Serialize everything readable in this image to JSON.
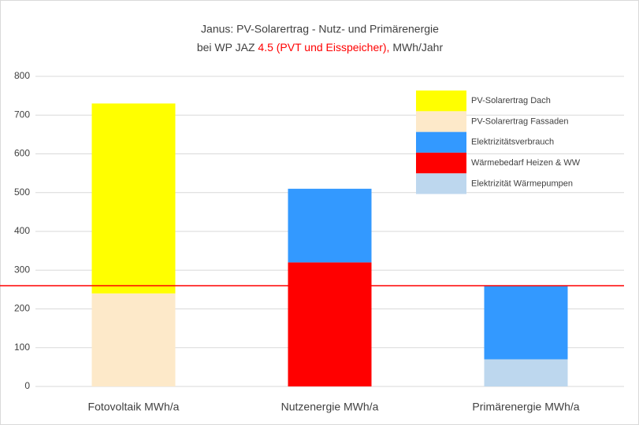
{
  "chart_data": {
    "type": "stacked_bar",
    "title": "Janus: PV-Solarertrag - Nutz- und Primärenergie",
    "subtitle_parts": [
      {
        "text": "bei WP JAZ ",
        "color": "#404040"
      },
      {
        "text": "4.5 (PVT und Eisspeicher),",
        "color": "#ff0000"
      },
      {
        "text": " MWh/Jahr",
        "color": "#404040"
      }
    ],
    "categories": [
      "Fotovoltaik MWh/a",
      "Nutzenergie MWh/a",
      "Primärenergie MWh/a"
    ],
    "series": [
      {
        "name": "Elektrizität Wärmepumpen",
        "color": "#bdd7ee",
        "values": [
          null,
          null,
          70
        ]
      },
      {
        "name": "Wärmebedarf Heizen & WW",
        "color": "#ff0000",
        "values": [
          null,
          320,
          null
        ]
      },
      {
        "name": "Elektrizitätsverbrauch",
        "color": "#3399ff",
        "values": [
          null,
          190,
          190
        ]
      },
      {
        "name": "PV-Solarertrag Fassaden",
        "color": "#fde9c9",
        "values": [
          240,
          null,
          null
        ]
      },
      {
        "name": "PV-Solarertrag Dach",
        "color": "#ffff00",
        "values": [
          490,
          null,
          null
        ]
      }
    ],
    "reference_line": {
      "value": 260,
      "color": "#ff0000"
    },
    "ylim": [
      0,
      800
    ],
    "yticks": [
      0,
      100,
      200,
      300,
      400,
      500,
      600,
      700,
      800
    ],
    "grid": true,
    "legend": "top-right"
  }
}
